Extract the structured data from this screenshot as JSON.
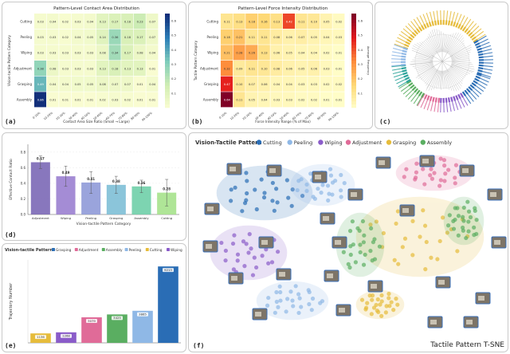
{
  "panel_labels": {
    "a": "(a)",
    "b": "(b)",
    "c": "(c)",
    "d": "(d)",
    "e": "(e)",
    "f": "(f)"
  },
  "colors": {
    "blue": "#2a6db5",
    "purple": "#8a5cc9",
    "green": "#5aae61",
    "pink": "#e06b98",
    "yellow": "#e6bc3b",
    "lightblue": "#8fb8e6",
    "teal": "#2aa39a"
  },
  "chart_data": [
    {
      "type": "heatmap",
      "id": "a",
      "title": "Pattern-Level Contact Area Distribution",
      "xlabel": "Contact Area Size Ratio (Small → Large)",
      "ylabel": "Vision-tactile Pattern Category",
      "rows": [
        "Cutting",
        "Peeling",
        "Wiping",
        "Adjustment",
        "Grasping",
        "Assembly"
      ],
      "cols": [
        "0-10%",
        "10-20%",
        "20-30%",
        "30-40%",
        "40-50%",
        "50-60%",
        "60-70%",
        "70-80%",
        "80-90%",
        "90-100%"
      ],
      "values": [
        [
          0.03,
          0.04,
          0.02,
          0.03,
          0.04,
          0.13,
          0.17,
          0.18,
          0.23,
          0.07
        ],
        [
          0.03,
          0.03,
          0.02,
          0.04,
          0.05,
          0.14,
          0.36,
          0.18,
          0.17,
          0.07
        ],
        [
          0.03,
          0.03,
          0.03,
          0.03,
          0.03,
          0.08,
          0.34,
          0.17,
          0.08,
          0.04
        ],
        [
          0.38,
          0.08,
          0.03,
          0.03,
          0.03,
          0.13,
          0.18,
          0.13,
          0.13,
          0.01
        ],
        [
          0.49,
          0.04,
          0.04,
          0.05,
          0.05,
          0.08,
          0.07,
          0.07,
          0.01,
          0.04
        ],
        [
          0.86,
          0.01,
          0.01,
          0.01,
          0.01,
          0.02,
          0.03,
          0.02,
          0.01,
          0.01
        ]
      ],
      "colorbar_ticks": [
        "0.6",
        "0.5",
        "0.4",
        "0.3",
        "0.2",
        "0.1"
      ]
    },
    {
      "type": "heatmap",
      "id": "b",
      "title": "Pattern-Level Force Intensity Distribution",
      "xlabel": "Force Intensity Range (% of Max)",
      "ylabel": "Tactile Pattern Category",
      "colorbar_label": "Average Frequency",
      "rows": [
        "Cutting",
        "Peeling",
        "Wiping",
        "Adjustment",
        "Grasping",
        "Assembly"
      ],
      "cols": [
        "0-10%",
        "10-20%",
        "20-30%",
        "30-40%",
        "40-50%",
        "50-60%",
        "60-70%",
        "70-80%",
        "80-90%",
        "90-100%"
      ],
      "values": [
        [
          0.11,
          0.13,
          0.18,
          0.16,
          0.13,
          0.42,
          0.11,
          0.1,
          0.05,
          0.02
        ],
        [
          0.18,
          0.21,
          0.11,
          0.11,
          0.08,
          0.06,
          0.07,
          0.05,
          0.04,
          0.03
        ],
        [
          0.21,
          0.28,
          0.26,
          0.13,
          0.06,
          0.05,
          0.04,
          0.04,
          0.02,
          0.01
        ],
        [
          0.32,
          0.09,
          0.11,
          0.1,
          0.08,
          0.06,
          0.05,
          0.06,
          0.03,
          0.01
        ],
        [
          0.47,
          0.1,
          0.07,
          0.06,
          0.04,
          0.04,
          0.03,
          0.03,
          0.02,
          0.02
        ],
        [
          0.64,
          0.11,
          0.05,
          0.04,
          0.03,
          0.03,
          0.02,
          0.02,
          0.01,
          0.01
        ]
      ],
      "colorbar_ticks": [
        "0.6",
        "0.5",
        "0.4",
        "0.3",
        "0.2",
        "0.1"
      ]
    },
    {
      "type": "bar",
      "id": "d",
      "xlabel": "Vision-tactile Pattern Category",
      "ylabel": "Effective Contact Ratio",
      "categories": [
        "Adjustment",
        "Wiping",
        "Peeling",
        "Grasping",
        "Assembly",
        "Cutting"
      ],
      "values": [
        0.67,
        0.49,
        0.41,
        0.38,
        0.36,
        0.28
      ],
      "errors": [
        0.08,
        0.13,
        0.14,
        0.11,
        0.08,
        0.17
      ],
      "value_labels": [
        "0.67",
        "0.49",
        "0.41",
        "0.38",
        "0.36",
        "0.28"
      ],
      "ylim": [
        0,
        0.9
      ]
    },
    {
      "type": "bar",
      "id": "e",
      "legend_title": "Vision-tactile Pattern:",
      "legend": [
        "Grasping",
        "Adjustment",
        "Assembly",
        "Peeling",
        "Cutting",
        "Wiping"
      ],
      "ylabel": "Trajectory Number",
      "categories": [
        "Cutting",
        "Wiping",
        "Adjustment",
        "Assembly",
        "Peeling",
        "Grasping"
      ],
      "values": [
        1136,
        1268,
        3079,
        3425,
        3865,
        9213
      ],
      "value_labels": [
        "1136",
        "1268",
        "3079",
        "3425",
        "3865",
        "9213"
      ],
      "ylim": [
        0,
        10000
      ]
    },
    {
      "type": "scatter",
      "id": "f",
      "title": "Vision-Tactile Pattern",
      "legend": [
        "Cutting",
        "Peeling",
        "Wiping",
        "Adjustment",
        "Grasping",
        "Assembly"
      ],
      "corner_label": "Tactile Pattern T-SNE"
    }
  ]
}
